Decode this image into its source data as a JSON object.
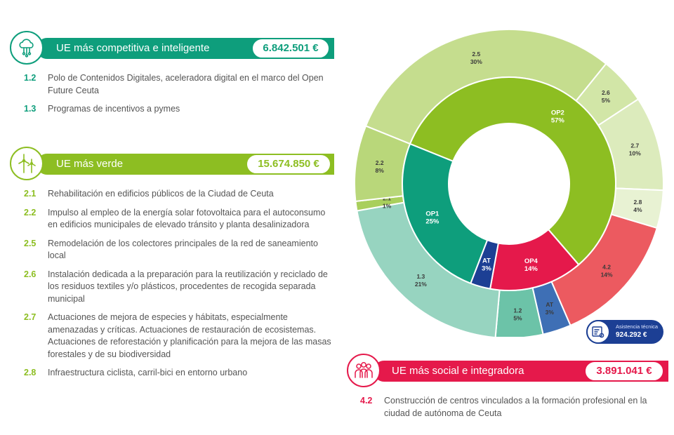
{
  "sections": [
    {
      "title": "UE más competitiva e inteligente",
      "amount": "6.842.501 €",
      "color": "#0e9e7c",
      "icon": "cloud-network-icon",
      "items": [
        {
          "code": "1.2",
          "text": "Polo de Contenidos Digitales, aceleradora digital en el marco del Open Future Ceuta"
        },
        {
          "code": "1.3",
          "text": "Programas de incentivos a pymes"
        }
      ]
    },
    {
      "title": "UE más verde",
      "amount": "15.674.850 €",
      "color": "#8dbe22",
      "icon": "wind-turbine-icon",
      "items": [
        {
          "code": "2.1",
          "text": "Rehabilitación en edificios públicos de la Ciudad de Ceuta"
        },
        {
          "code": "2.2",
          "text": "Impulso al empleo de la energía solar fotovoltaica para el autoconsumo en edificios municipales de elevado tránsito y planta desalinizadora"
        },
        {
          "code": "2.5",
          "text": "Remodelación de los colectores principales de la red de saneamiento local"
        },
        {
          "code": "2.6",
          "text": "Instalación dedicada a la preparación para la reutilización y reciclado de los residuos textiles y/o plásticos, procedentes de recogida separada municipal"
        },
        {
          "code": "2.7",
          "text": "Actuaciones de mejora de especies y hábitats, especialmente amenazadas y críticas. Actuaciones de restauración de ecosistemas. Actuaciones de reforestación y planificación para la mejora de las masas forestales y de su biodiversidad"
        },
        {
          "code": "2.8",
          "text": "Infraestructura ciclista, carril-bici en entorno urbano"
        }
      ]
    },
    {
      "title": "UE más social e integradora",
      "amount": "3.891.041 €",
      "color": "#e5194b",
      "icon": "people-group-icon",
      "items": [
        {
          "code": "4.2",
          "text": "Construcción de centros vinculados a la formación profesional en la ciudad de autónoma de Ceuta"
        }
      ]
    }
  ],
  "badge": {
    "label": "Asistencia técnica",
    "amount": "924.292 €",
    "color": "#1c3f94",
    "icon": "technical-assistance-icon"
  },
  "chart_data": {
    "type": "pie",
    "inner": [
      {
        "name": "OP2",
        "pct": "57%",
        "value": 57,
        "color": "#8dbe22"
      },
      {
        "name": "OP4",
        "pct": "14%",
        "value": 14,
        "color": "#e5194b"
      },
      {
        "name": "AT",
        "pct": "3%",
        "value": 3,
        "color": "#1c3f94"
      },
      {
        "name": "OP1",
        "pct": "25%",
        "value": 25,
        "color": "#0e9e7c"
      }
    ],
    "outer": [
      {
        "name": "2.5",
        "pct": "30%",
        "value": 30,
        "color": "#c5dd8e"
      },
      {
        "name": "2.6",
        "pct": "5%",
        "value": 5,
        "color": "#d2e6a7"
      },
      {
        "name": "2.7",
        "pct": "10%",
        "value": 10,
        "color": "#dcebbc"
      },
      {
        "name": "2.8",
        "pct": "4%",
        "value": 4,
        "color": "#e8f2d3"
      },
      {
        "name": "4.2",
        "pct": "14%",
        "value": 14,
        "color": "#ec5a60"
      },
      {
        "name": "AT",
        "pct": "3%",
        "value": 3,
        "color": "#3e6fb5"
      },
      {
        "name": "1.2",
        "pct": "5%",
        "value": 5,
        "color": "#6cc3a8"
      },
      {
        "name": "1.3",
        "pct": "21%",
        "value": 21,
        "color": "#97d4c0"
      },
      {
        "name": "2.1",
        "pct": "1%",
        "value": 1,
        "color": "#a9cf5c"
      },
      {
        "name": "2.2",
        "pct": "8%",
        "value": 8,
        "color": "#b9d77a"
      }
    ]
  }
}
